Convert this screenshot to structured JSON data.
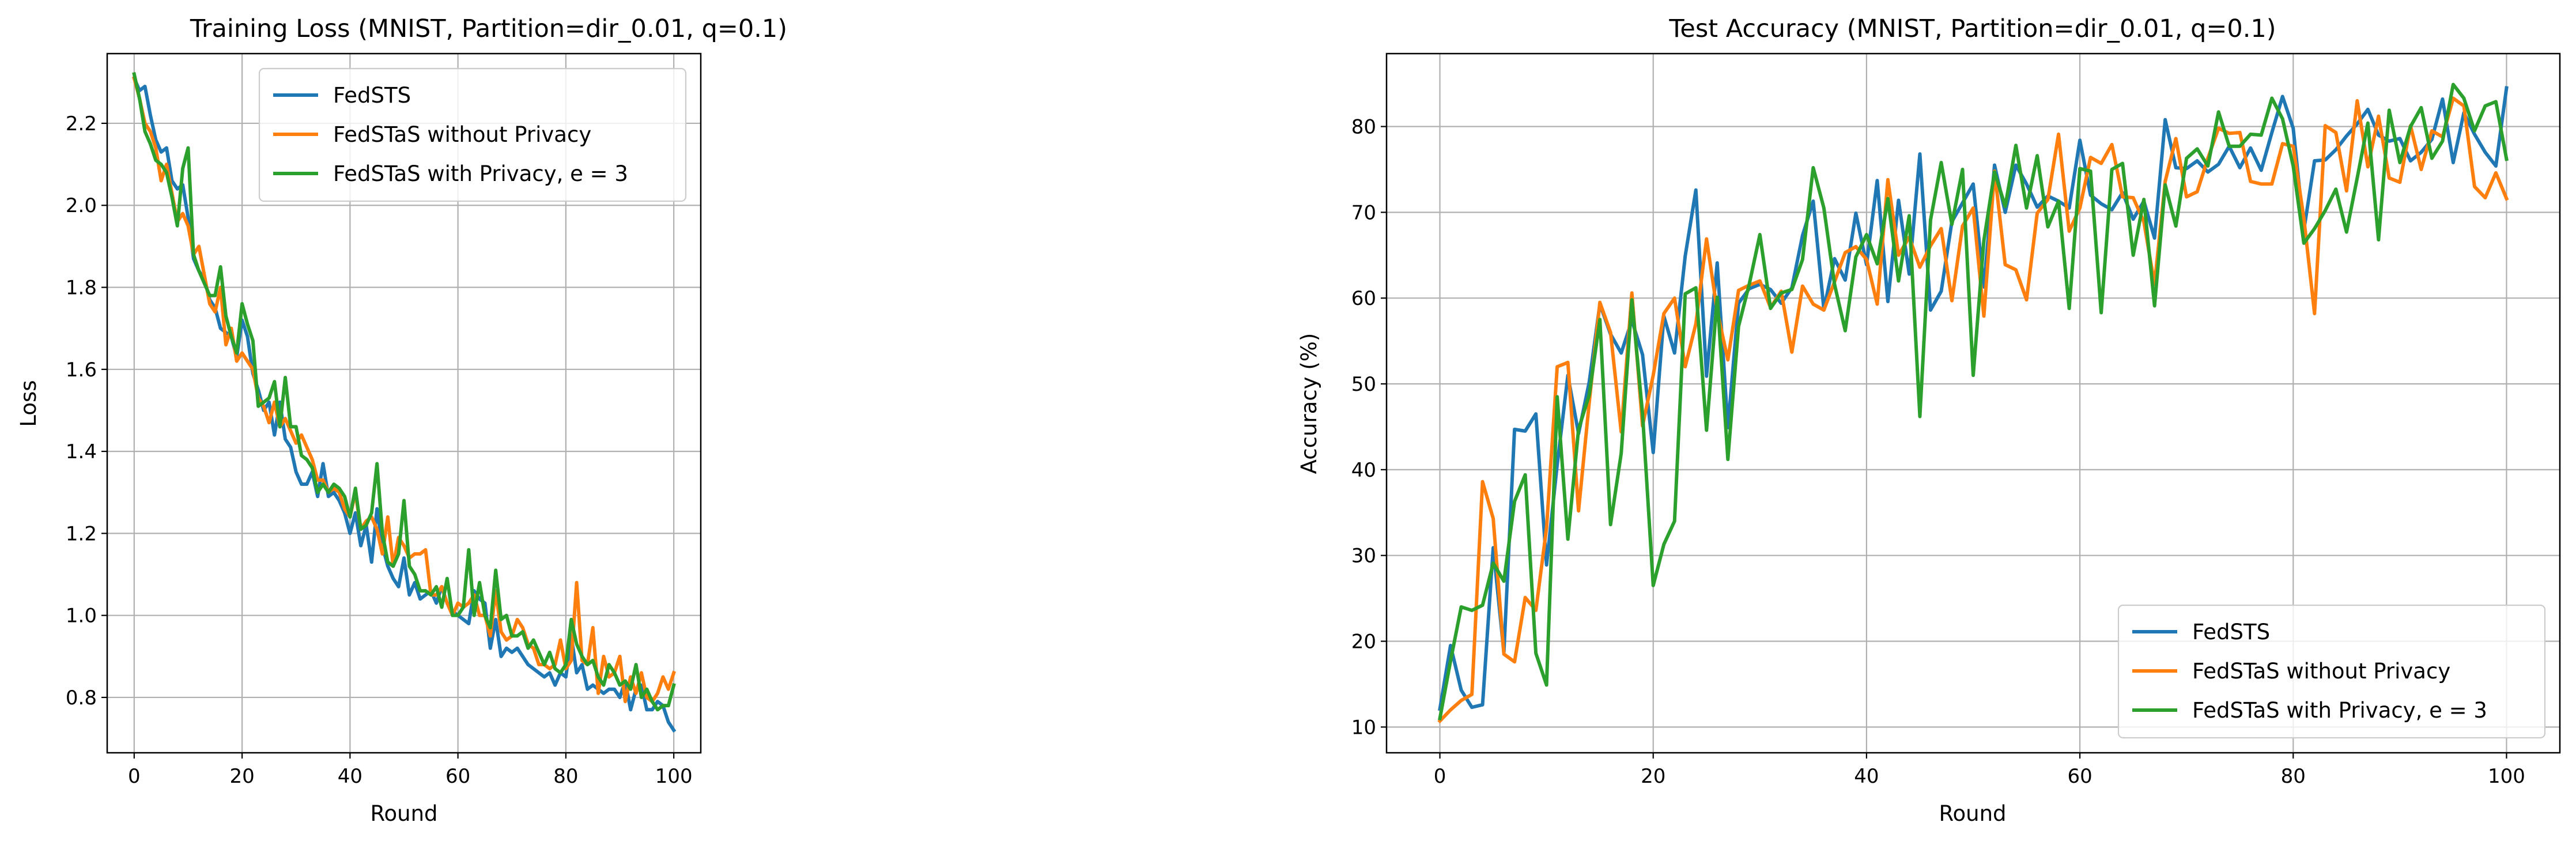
{
  "figure": {
    "layout": "1x2",
    "grid": true,
    "series_colors": [
      "#1f77b4",
      "#ff7f0e",
      "#2ca02c"
    ]
  },
  "chart_data": [
    {
      "type": "line",
      "title": "Training Loss (MNIST, Partition=dir_0.01, q=0.1)",
      "xlabel": "Round",
      "ylabel": "Loss",
      "xlim": [
        -5,
        105
      ],
      "ylim": [
        0.665,
        2.37
      ],
      "xticks": [
        0,
        20,
        40,
        60,
        80,
        100
      ],
      "yticks": [
        0.8,
        1.0,
        1.2,
        1.4,
        1.6,
        1.8,
        2.0,
        2.2
      ],
      "ytick_format": 1,
      "legend_position": "top-right",
      "grid": true,
      "series": [
        {
          "name": "FedSTS",
          "color": "#1f77b4",
          "values": [
            2.31,
            2.28,
            2.29,
            2.22,
            2.16,
            2.13,
            2.14,
            2.06,
            2.04,
            2.05,
            1.97,
            1.87,
            1.84,
            1.82,
            1.77,
            1.75,
            1.7,
            1.69,
            1.68,
            1.63,
            1.72,
            1.68,
            1.59,
            1.55,
            1.5,
            1.52,
            1.44,
            1.52,
            1.43,
            1.41,
            1.35,
            1.32,
            1.32,
            1.35,
            1.29,
            1.37,
            1.29,
            1.3,
            1.28,
            1.25,
            1.2,
            1.25,
            1.17,
            1.22,
            1.13,
            1.26,
            1.17,
            1.12,
            1.09,
            1.07,
            1.14,
            1.05,
            1.08,
            1.04,
            1.05,
            1.06,
            1.03,
            1.07,
            1.03,
            1.01,
            1.0,
            0.99,
            0.98,
            1.06,
            1.04,
            1.03,
            0.92,
            0.99,
            0.9,
            0.92,
            0.91,
            0.92,
            0.9,
            0.88,
            0.87,
            0.86,
            0.85,
            0.86,
            0.83,
            0.86,
            0.85,
            0.95,
            0.86,
            0.88,
            0.82,
            0.83,
            0.82,
            0.81,
            0.82,
            0.82,
            0.8,
            0.84,
            0.77,
            0.82,
            0.83,
            0.77,
            0.77,
            0.79,
            0.78,
            0.74,
            0.72
          ]
        },
        {
          "name": "FedSTaS without Privacy",
          "color": "#ff7f0e",
          "values": [
            2.31,
            2.26,
            2.2,
            2.18,
            2.14,
            2.06,
            2.1,
            2.03,
            1.96,
            1.98,
            1.95,
            1.88,
            1.9,
            1.83,
            1.76,
            1.74,
            1.8,
            1.66,
            1.7,
            1.62,
            1.64,
            1.62,
            1.6,
            1.53,
            1.51,
            1.47,
            1.52,
            1.46,
            1.48,
            1.45,
            1.42,
            1.44,
            1.41,
            1.38,
            1.33,
            1.33,
            1.3,
            1.31,
            1.3,
            1.26,
            1.24,
            1.3,
            1.21,
            1.23,
            1.24,
            1.21,
            1.15,
            1.24,
            1.12,
            1.19,
            1.17,
            1.14,
            1.15,
            1.15,
            1.16,
            1.05,
            1.05,
            1.07,
            1.03,
            1.0,
            1.03,
            1.02,
            1.03,
            1.05,
            1.0,
            1.0,
            0.95,
            1.06,
            0.96,
            0.94,
            0.95,
            0.99,
            0.97,
            0.93,
            0.92,
            0.88,
            0.88,
            0.87,
            0.88,
            0.94,
            0.87,
            0.89,
            1.08,
            0.89,
            0.88,
            0.97,
            0.81,
            0.9,
            0.85,
            0.86,
            0.9,
            0.79,
            0.85,
            0.81,
            0.86,
            0.8,
            0.79,
            0.81,
            0.85,
            0.82,
            0.86
          ]
        },
        {
          "name": "FedSTaS with Privacy, e = 3",
          "color": "#2ca02c",
          "values": [
            2.32,
            2.26,
            2.18,
            2.15,
            2.11,
            2.1,
            2.08,
            2.02,
            1.95,
            2.09,
            2.14,
            1.88,
            1.84,
            1.81,
            1.78,
            1.78,
            1.85,
            1.73,
            1.68,
            1.64,
            1.76,
            1.71,
            1.67,
            1.51,
            1.52,
            1.53,
            1.57,
            1.46,
            1.58,
            1.46,
            1.46,
            1.39,
            1.38,
            1.36,
            1.3,
            1.32,
            1.3,
            1.32,
            1.31,
            1.29,
            1.24,
            1.31,
            1.21,
            1.22,
            1.25,
            1.37,
            1.2,
            1.13,
            1.12,
            1.15,
            1.28,
            1.12,
            1.1,
            1.06,
            1.06,
            1.05,
            1.07,
            1.02,
            1.09,
            1.0,
            1.0,
            1.02,
            1.16,
            1.0,
            1.08,
            1.0,
            0.97,
            1.11,
            0.99,
            1.0,
            0.95,
            0.95,
            0.96,
            0.92,
            0.94,
            0.91,
            0.88,
            0.91,
            0.87,
            0.86,
            0.88,
            0.99,
            0.93,
            0.9,
            0.88,
            0.89,
            0.85,
            0.83,
            0.88,
            0.86,
            0.83,
            0.84,
            0.82,
            0.88,
            0.8,
            0.82,
            0.79,
            0.77,
            0.78,
            0.78,
            0.83
          ]
        }
      ]
    },
    {
      "type": "line",
      "title": "Test Accuracy (MNIST, Partition=dir_0.01, q=0.1)",
      "xlabel": "Round",
      "ylabel": "Accuracy (%)",
      "xlim": [
        -5,
        105
      ],
      "ylim": [
        7,
        88.5
      ],
      "xticks": [
        0,
        20,
        40,
        60,
        80,
        100
      ],
      "yticks": [
        10,
        20,
        30,
        40,
        50,
        60,
        70,
        80
      ],
      "ytick_format": 0,
      "legend_position": "bottom-right",
      "grid": true,
      "series": [
        {
          "name": "FedSTS",
          "color": "#1f77b4",
          "values": [
            12.1,
            19.5,
            14.3,
            12.3,
            12.6,
            30.9,
            18.7,
            44.7,
            44.5,
            46.5,
            28.9,
            40.6,
            51.0,
            44.2,
            50.2,
            59.3,
            55.8,
            53.6,
            57.4,
            53.4,
            42.0,
            57.9,
            53.6,
            64.9,
            72.6,
            50.9,
            64.1,
            44.9,
            59.4,
            61.1,
            61.6,
            61.0,
            59.4,
            61.2,
            67.3,
            71.3,
            58.7,
            64.6,
            62.1,
            69.9,
            63.9,
            73.7,
            59.6,
            71.4,
            62.8,
            76.8,
            58.6,
            60.8,
            68.9,
            71.1,
            73.3,
            61.3,
            75.5,
            70.0,
            75.5,
            73.3,
            70.6,
            71.9,
            71.3,
            70.5,
            78.4,
            72.0,
            71.0,
            70.3,
            72.3,
            69.2,
            71.3,
            67.0,
            80.8,
            75.2,
            75.1,
            76.0,
            74.7,
            75.6,
            77.7,
            75.2,
            77.5,
            74.9,
            79.3,
            83.5,
            79.8,
            67.9,
            76.0,
            76.1,
            77.3,
            78.9,
            80.3,
            82.0,
            79.0,
            78.3,
            78.6,
            76.0,
            77.0,
            78.5,
            83.2,
            75.8,
            81.6,
            79.1,
            77.0,
            75.4,
            84.5
          ]
        },
        {
          "name": "FedSTaS without Privacy",
          "color": "#ff7f0e",
          "values": [
            10.7,
            12.0,
            13.1,
            13.8,
            38.6,
            34.3,
            18.5,
            17.6,
            25.1,
            23.6,
            33.2,
            52.0,
            52.5,
            35.2,
            47.8,
            59.5,
            56.0,
            44.4,
            60.6,
            45.1,
            51.0,
            58.2,
            60.0,
            52.0,
            57.0,
            66.9,
            58.5,
            52.8,
            60.9,
            61.5,
            62.0,
            58.9,
            60.8,
            53.7,
            61.4,
            59.3,
            58.6,
            61.9,
            65.3,
            66.0,
            64.5,
            59.3,
            73.8,
            65.0,
            67.1,
            63.6,
            66.1,
            68.1,
            59.7,
            68.4,
            70.5,
            57.9,
            74.8,
            63.9,
            63.3,
            59.8,
            69.9,
            71.5,
            79.1,
            67.8,
            70.5,
            76.4,
            75.7,
            77.9,
            71.8,
            71.7,
            68.9,
            61.6,
            73.6,
            78.6,
            71.8,
            72.4,
            76.3,
            79.8,
            79.2,
            79.3,
            73.6,
            73.3,
            73.3,
            78.0,
            77.7,
            69.3,
            58.2,
            80.1,
            79.3,
            72.5,
            83.0,
            75.3,
            81.2,
            74.0,
            73.5,
            80.1,
            75.0,
            79.5,
            78.8,
            83.3,
            82.4,
            73.0,
            71.7,
            74.6,
            71.6
          ]
        },
        {
          "name": "FedSTaS with Privacy, e = 3",
          "color": "#2ca02c",
          "values": [
            11.0,
            17.7,
            24.0,
            23.6,
            24.2,
            29.1,
            27.0,
            36.3,
            39.4,
            18.6,
            14.9,
            48.5,
            31.9,
            44.7,
            48.7,
            57.5,
            33.6,
            41.9,
            59.8,
            46.5,
            26.5,
            31.3,
            34.0,
            60.5,
            61.2,
            44.6,
            60.1,
            41.2,
            56.7,
            61.6,
            67.4,
            58.8,
            60.6,
            61.0,
            64.5,
            75.2,
            70.5,
            61.6,
            56.2,
            64.8,
            67.4,
            64.0,
            71.6,
            62.0,
            69.6,
            46.2,
            69.1,
            75.8,
            68.6,
            75.0,
            51.0,
            66.7,
            74.7,
            70.7,
            77.8,
            70.5,
            76.6,
            68.3,
            71.3,
            58.8,
            75.1,
            74.8,
            58.3,
            75.0,
            75.7,
            65.0,
            71.5,
            59.1,
            73.2,
            68.4,
            76.3,
            77.4,
            75.4,
            81.7,
            77.7,
            77.7,
            79.1,
            79.0,
            83.3,
            80.9,
            75.4,
            66.4,
            68.1,
            70.2,
            72.7,
            67.7,
            74.0,
            80.4,
            66.8,
            81.9,
            75.8,
            80.0,
            82.2,
            76.3,
            78.3,
            84.9,
            83.3,
            79.5,
            82.4,
            82.9,
            76.2
          ]
        }
      ]
    }
  ]
}
